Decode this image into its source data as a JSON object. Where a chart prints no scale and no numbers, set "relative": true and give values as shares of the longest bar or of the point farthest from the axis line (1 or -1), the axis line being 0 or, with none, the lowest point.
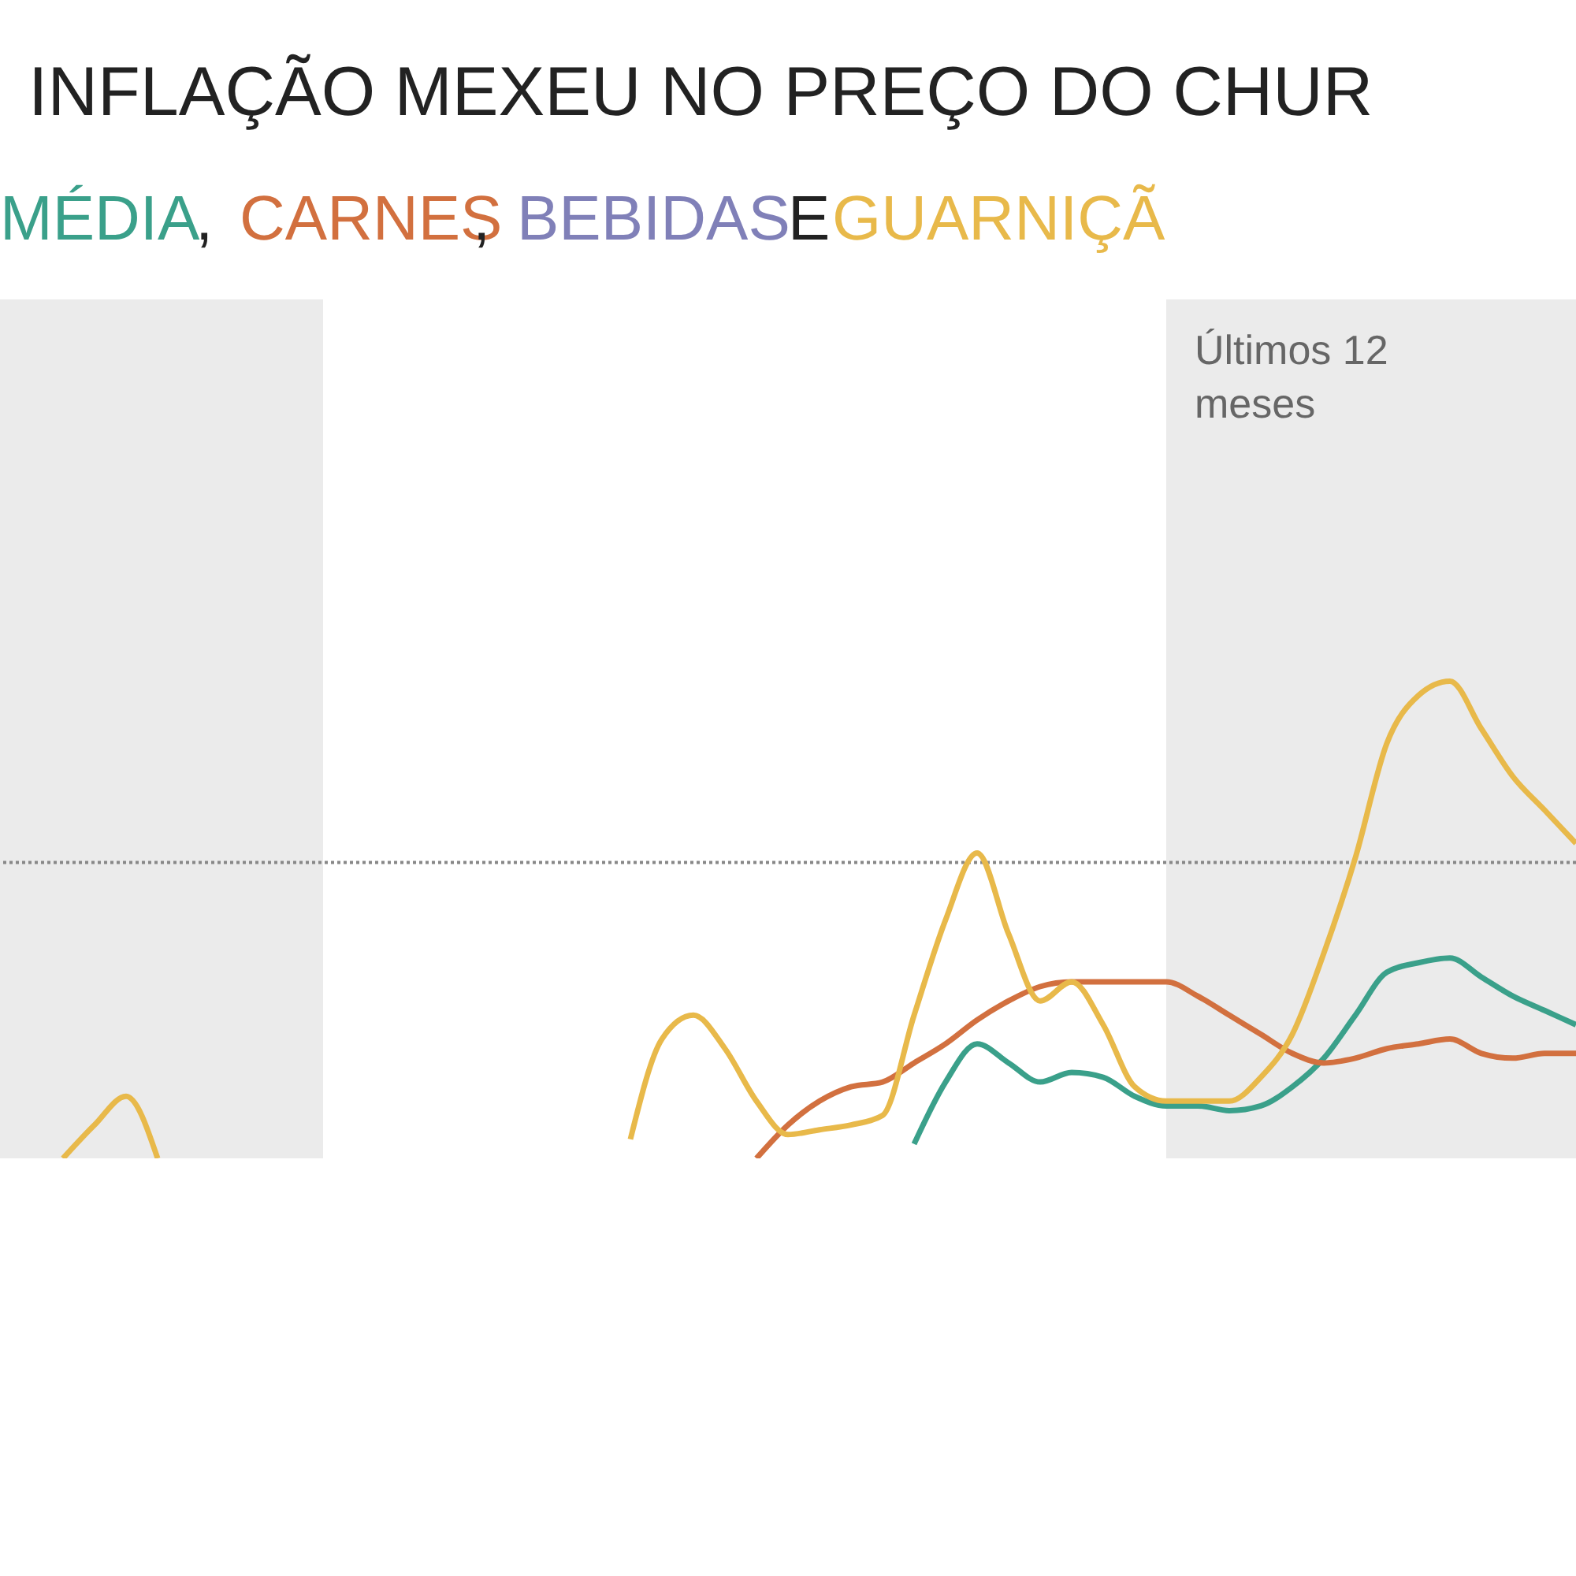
{
  "chart_data": {
    "type": "line",
    "relative": true,
    "title": "INFLAÇÃO MEXEU NO PREÇO DO CHUR",
    "annotations": [
      ", ",
      ", ",
      " E ",
      "Últimos 12\nmeses"
    ],
    "categories": [
      null,
      null,
      null,
      null,
      null,
      null,
      null,
      null,
      null,
      null,
      null,
      null,
      null,
      null,
      null,
      null,
      null,
      null,
      null,
      null,
      null,
      null,
      null,
      null,
      null,
      null,
      null,
      null,
      null,
      null,
      null,
      null,
      null,
      null,
      null,
      null,
      null,
      null,
      null,
      null,
      null,
      null,
      null,
      null,
      null,
      null,
      null,
      null,
      null,
      null,
      null
    ],
    "line_style": "solid",
    "marker": "none",
    "ref_lines": [
      {
        "axis": "y",
        "value": 0.62,
        "color": "#888888",
        "line_style": "dotted"
      }
    ],
    "series": [
      {
        "name": "MÉDIA",
        "color": "#3aa08a",
        "values": [
          null,
          null,
          null,
          null,
          null,
          null,
          null,
          null,
          null,
          null,
          null,
          null,
          null,
          null,
          null,
          null,
          null,
          null,
          null,
          null,
          null,
          null,
          null,
          null,
          null,
          null,
          null,
          null,
          null,
          0.03,
          0.16,
          0.24,
          0.2,
          0.16,
          0.18,
          0.17,
          0.13,
          0.11,
          0.11,
          0.1,
          0.11,
          0.15,
          0.21,
          0.3,
          0.39,
          0.41,
          0.42,
          0.38,
          0.34,
          0.31,
          0.28
        ]
      },
      {
        "name": "CARNES",
        "color": "#d2703f",
        "values": [
          null,
          null,
          null,
          null,
          null,
          null,
          null,
          null,
          null,
          null,
          null,
          null,
          null,
          null,
          null,
          null,
          null,
          null,
          null,
          null,
          null,
          null,
          null,
          null,
          0,
          0.07,
          0.12,
          0.15,
          0.16,
          0.2,
          0.24,
          0.29,
          0.33,
          0.36,
          0.37,
          0.37,
          0.37,
          0.37,
          0.34,
          0.3,
          0.26,
          0.22,
          0.2,
          0.21,
          0.23,
          0.24,
          0.25,
          0.22,
          0.21,
          0.22,
          0.22
        ]
      },
      {
        "name": "BEBIDAS",
        "color": "#8080b8",
        "values": [
          null,
          null,
          null,
          null,
          null,
          null,
          null,
          null,
          null,
          null,
          null,
          null,
          null,
          null,
          null,
          null,
          null,
          null,
          null,
          null,
          null,
          null,
          null,
          null,
          null,
          null,
          null,
          null,
          null,
          null,
          null,
          null,
          null,
          null,
          null,
          null,
          null,
          null,
          null,
          null,
          null,
          null,
          null,
          null,
          null,
          null,
          null,
          null,
          null,
          null,
          null
        ]
      },
      {
        "name": "GUARNIÇÃ",
        "color": "#e8b94a",
        "values": [
          null,
          null,
          0,
          0.07,
          0.13,
          0,
          null,
          null,
          null,
          null,
          null,
          null,
          null,
          null,
          null,
          null,
          null,
          null,
          null,
          null,
          0.04,
          0.25,
          0.3,
          0.23,
          0.12,
          0.05,
          0.06,
          0.07,
          0.09,
          0.3,
          0.5,
          0.64,
          0.47,
          0.33,
          0.37,
          0.28,
          0.15,
          0.12,
          0.12,
          0.12,
          0.17,
          0.26,
          0.43,
          0.63,
          0.87,
          0.97,
          1.0,
          0.9,
          0.8,
          0.73,
          0.66
        ]
      }
    ]
  }
}
